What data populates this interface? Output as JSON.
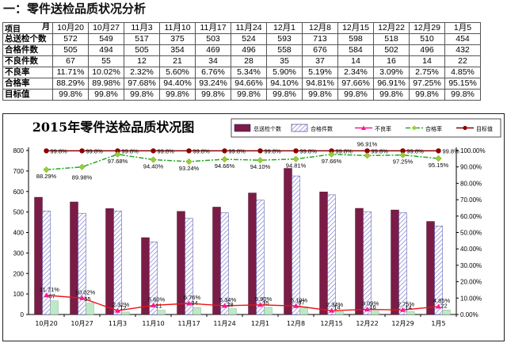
{
  "heading": "一：零件送检品质状况分析",
  "table": {
    "corner_top": "月",
    "corner_bottom": "项目",
    "dates": [
      "10月20",
      "10月27",
      "11月3",
      "11月10",
      "11月17",
      "11月24",
      "12月1",
      "12月8",
      "12月15",
      "12月22",
      "12月29",
      "1月5"
    ],
    "rows": [
      {
        "label": "总送检个数",
        "values": [
          "572",
          "549",
          "517",
          "375",
          "503",
          "524",
          "593",
          "713",
          "598",
          "518",
          "510",
          "454"
        ]
      },
      {
        "label": "合格件数",
        "values": [
          "505",
          "494",
          "505",
          "354",
          "469",
          "496",
          "558",
          "676",
          "584",
          "502",
          "496",
          "432"
        ]
      },
      {
        "label": "不良件数",
        "values": [
          "67",
          "55",
          "12",
          "21",
          "34",
          "28",
          "35",
          "37",
          "14",
          "16",
          "14",
          "22"
        ]
      },
      {
        "label": "不良率",
        "values": [
          "11.71%",
          "10.02%",
          "2.32%",
          "5.60%",
          "6.76%",
          "5.34%",
          "5.90%",
          "5.19%",
          "2.34%",
          "3.09%",
          "2.75%",
          "4.85%"
        ]
      },
      {
        "label": "合格率",
        "values": [
          "88.29%",
          "89.98%",
          "97.68%",
          "94.40%",
          "93.24%",
          "94.66%",
          "94.10%",
          "94.81%",
          "97.66%",
          "96.91%",
          "97.25%",
          "95.15%"
        ]
      },
      {
        "label": "目标值",
        "values": [
          "99.8%",
          "99.8%",
          "99.8%",
          "99.8%",
          "99.8%",
          "99.8%",
          "99.8%",
          "99.8%",
          "99.8%",
          "99.8%",
          "99.8%",
          "99.8%"
        ]
      }
    ]
  },
  "chart_data": {
    "type": "bar",
    "title": "2015年零件送检品质状况图",
    "categories": [
      "10月20",
      "10月27",
      "11月3",
      "11月10",
      "11月17",
      "11月24",
      "12月1",
      "12月8",
      "12月15",
      "12月22",
      "12月29",
      "1月5"
    ],
    "series": [
      {
        "name": "总送检个数",
        "type": "bar",
        "axis": "left",
        "values": [
          572,
          549,
          517,
          375,
          503,
          524,
          593,
          713,
          598,
          518,
          510,
          454
        ]
      },
      {
        "name": "合格件数",
        "type": "bar",
        "axis": "left",
        "values": [
          505,
          494,
          505,
          354,
          469,
          496,
          558,
          676,
          584,
          502,
          496,
          432
        ]
      },
      {
        "name": "不良件数",
        "type": "bar",
        "axis": "left",
        "values": [
          67,
          55,
          12,
          21,
          34,
          28,
          35,
          37,
          14,
          16,
          14,
          22
        ]
      },
      {
        "name": "不良率",
        "type": "line",
        "axis": "right",
        "values": [
          11.71,
          10.02,
          2.32,
          5.6,
          6.76,
          5.34,
          5.9,
          5.19,
          2.34,
          3.09,
          2.75,
          4.85
        ]
      },
      {
        "name": "合格率",
        "type": "line",
        "axis": "right",
        "values": [
          88.29,
          89.98,
          97.68,
          94.4,
          93.24,
          94.66,
          94.1,
          94.81,
          97.66,
          96.91,
          97.25,
          95.15
        ]
      },
      {
        "name": "目标值",
        "type": "line",
        "axis": "right",
        "values": [
          99.8,
          99.8,
          99.8,
          99.8,
          99.8,
          99.8,
          99.8,
          99.8,
          99.8,
          99.8,
          99.8,
          99.8
        ]
      }
    ],
    "ylim_left": [
      0,
      800
    ],
    "yticks_left": [
      "0",
      "100",
      "200",
      "300",
      "400",
      "500",
      "600",
      "700",
      "800"
    ],
    "ylim_right": [
      0,
      100
    ],
    "yticks_right": [
      "0.00%",
      "10.00%",
      "20.00%",
      "30.00%",
      "40.00%",
      "50.00%",
      "60.00%",
      "70.00%",
      "80.00%",
      "90.00%",
      "100.00%"
    ],
    "legend_position": "top-right",
    "grid": false,
    "colors": {
      "total": "#7b1c46",
      "pass_hatch": "#8c8cd9",
      "defect_count": "#bfe8c8",
      "defect_rate": "#ff1493",
      "pass_rate": "#22aa22",
      "pass_rate_marker": "#9acd32",
      "target": "#8b0000",
      "legend_swatch_border": "#2a2a7a"
    }
  }
}
